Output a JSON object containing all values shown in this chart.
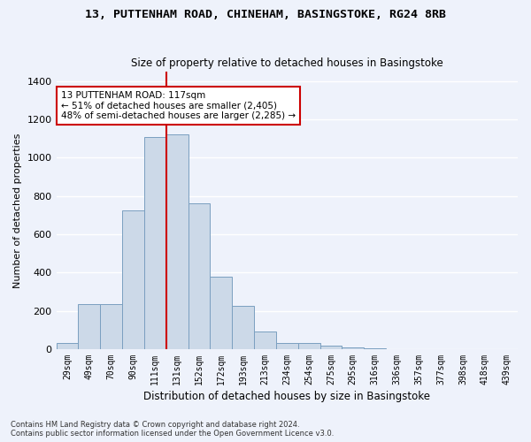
{
  "title1": "13, PUTTENHAM ROAD, CHINEHAM, BASINGSTOKE, RG24 8RB",
  "title2": "Size of property relative to detached houses in Basingstoke",
  "xlabel": "Distribution of detached houses by size in Basingstoke",
  "ylabel": "Number of detached properties",
  "categories": [
    "29sqm",
    "49sqm",
    "70sqm",
    "90sqm",
    "111sqm",
    "131sqm",
    "152sqm",
    "172sqm",
    "193sqm",
    "213sqm",
    "234sqm",
    "254sqm",
    "275sqm",
    "295sqm",
    "316sqm",
    "336sqm",
    "357sqm",
    "377sqm",
    "398sqm",
    "418sqm",
    "439sqm"
  ],
  "bar_values": [
    30,
    235,
    235,
    725,
    1110,
    1120,
    760,
    380,
    225,
    90,
    30,
    30,
    20,
    10,
    5,
    0,
    0,
    0,
    0,
    0,
    0
  ],
  "bar_color": "#ccd9e8",
  "bar_edge_color": "#7a9fc0",
  "vline_color": "#cc0000",
  "annotation_text": "13 PUTTENHAM ROAD: 117sqm\n← 51% of detached houses are smaller (2,405)\n48% of semi-detached houses are larger (2,285) →",
  "annotation_box_color": "#ffffff",
  "annotation_box_edge": "#cc0000",
  "ylim": [
    0,
    1450
  ],
  "yticks": [
    0,
    200,
    400,
    600,
    800,
    1000,
    1200,
    1400
  ],
  "footnote1": "Contains HM Land Registry data © Crown copyright and database right 2024.",
  "footnote2": "Contains public sector information licensed under the Open Government Licence v3.0.",
  "bg_color": "#eef2fb",
  "grid_color": "#ffffff"
}
